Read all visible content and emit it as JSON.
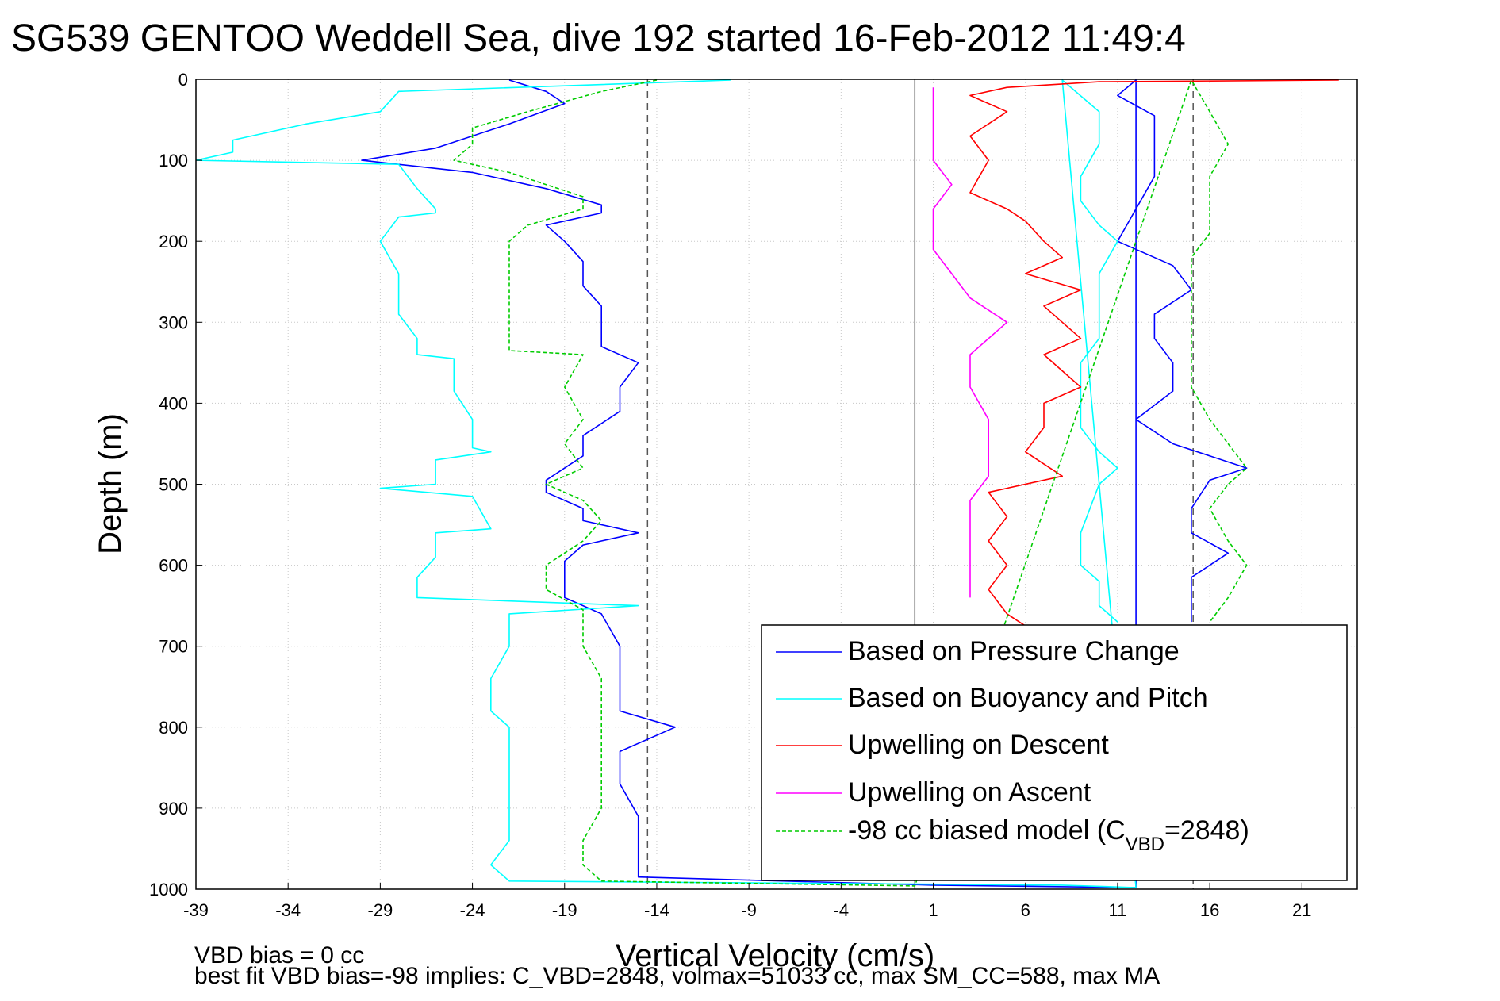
{
  "chart_data": {
    "type": "line",
    "title": "SG539 GENTOO Weddell Sea, dive 192 started 16-Feb-2012 11:49:4",
    "xlabel": "Vertical Velocity (cm/s)",
    "ylabel": "Depth (m)",
    "xlim": [
      -39,
      24
    ],
    "ylim": [
      1000,
      0
    ],
    "y_reversed": true,
    "grid": true,
    "xticks": [
      "-39",
      "-34",
      "-29",
      "-24",
      "-19",
      "-14",
      "-9",
      "-4",
      "1",
      "6",
      "11",
      "16",
      "21"
    ],
    "yticks": [
      "0",
      "100",
      "200",
      "300",
      "400",
      "500",
      "600",
      "700",
      "800",
      "900",
      "1000"
    ],
    "reference_lines": {
      "dashed_x": [
        -14.5,
        15.1
      ],
      "solid_x": [
        0
      ]
    },
    "legend_placement": "lower-right",
    "series": [
      {
        "name": "Based on Pressure Change",
        "color": "#0000ff",
        "style": "solid",
        "points": [
          [
            -22,
            1
          ],
          [
            -20,
            15
          ],
          [
            -19,
            30
          ],
          [
            -22,
            55
          ],
          [
            -26,
            85
          ],
          [
            -30,
            100
          ],
          [
            -24,
            115
          ],
          [
            -20,
            135
          ],
          [
            -17,
            155
          ],
          [
            -17,
            165
          ],
          [
            -20,
            180
          ],
          [
            -19,
            200
          ],
          [
            -18,
            225
          ],
          [
            -18,
            255
          ],
          [
            -17,
            280
          ],
          [
            -17,
            305
          ],
          [
            -17,
            330
          ],
          [
            -15,
            350
          ],
          [
            -16,
            380
          ],
          [
            -16,
            410
          ],
          [
            -18,
            440
          ],
          [
            -18,
            465
          ],
          [
            -20,
            495
          ],
          [
            -20,
            510
          ],
          [
            -18,
            530
          ],
          [
            -18,
            545
          ],
          [
            -15,
            560
          ],
          [
            -18,
            575
          ],
          [
            -19,
            595
          ],
          [
            -19,
            615
          ],
          [
            -19,
            640
          ],
          [
            -17,
            660
          ],
          [
            -16,
            700
          ],
          [
            -16,
            740
          ],
          [
            -16,
            780
          ],
          [
            -13,
            800
          ],
          [
            -16,
            830
          ],
          [
            -16,
            870
          ],
          [
            -15,
            910
          ],
          [
            -15,
            950
          ],
          [
            -15,
            985
          ],
          [
            1,
            995
          ],
          [
            12,
            998
          ],
          [
            12,
            1
          ],
          [
            11,
            20
          ],
          [
            13,
            45
          ],
          [
            13,
            80
          ],
          [
            13,
            120
          ],
          [
            12,
            160
          ],
          [
            11,
            200
          ],
          [
            14,
            230
          ],
          [
            15,
            260
          ],
          [
            13,
            290
          ],
          [
            13,
            320
          ],
          [
            14,
            350
          ],
          [
            14,
            385
          ],
          [
            12,
            420
          ],
          [
            14,
            450
          ],
          [
            18,
            480
          ],
          [
            16,
            495
          ],
          [
            15,
            530
          ],
          [
            15,
            560
          ],
          [
            17,
            585
          ],
          [
            15,
            615
          ],
          [
            15,
            645
          ],
          [
            15,
            670
          ]
        ]
      },
      {
        "name": "Based on Buoyancy and Pitch",
        "color": "#00ffff",
        "style": "solid",
        "points": [
          [
            -10,
            1
          ],
          [
            -28,
            15
          ],
          [
            -29,
            40
          ],
          [
            -33,
            55
          ],
          [
            -37,
            75
          ],
          [
            -37,
            90
          ],
          [
            -39,
            100
          ],
          [
            -28,
            105
          ],
          [
            -27,
            135
          ],
          [
            -26,
            160
          ],
          [
            -26,
            165
          ],
          [
            -28,
            170
          ],
          [
            -29,
            200
          ],
          [
            -28,
            240
          ],
          [
            -28,
            290
          ],
          [
            -27,
            320
          ],
          [
            -27,
            340
          ],
          [
            -25,
            345
          ],
          [
            -25,
            385
          ],
          [
            -24,
            420
          ],
          [
            -24,
            455
          ],
          [
            -23,
            460
          ],
          [
            -26,
            470
          ],
          [
            -26,
            500
          ],
          [
            -29,
            505
          ],
          [
            -24,
            515
          ],
          [
            -23,
            555
          ],
          [
            -26,
            560
          ],
          [
            -26,
            590
          ],
          [
            -27,
            615
          ],
          [
            -27,
            640
          ],
          [
            -15,
            650
          ],
          [
            -22,
            660
          ],
          [
            -22,
            700
          ],
          [
            -23,
            740
          ],
          [
            -23,
            780
          ],
          [
            -22,
            800
          ],
          [
            -22,
            840
          ],
          [
            -22,
            870
          ],
          [
            -22,
            900
          ],
          [
            -22,
            940
          ],
          [
            -23,
            970
          ],
          [
            -22,
            990
          ],
          [
            8,
            995
          ],
          [
            12,
            998
          ],
          [
            8,
            1
          ],
          [
            10,
            40
          ],
          [
            10,
            80
          ],
          [
            9,
            120
          ],
          [
            9,
            150
          ],
          [
            10,
            180
          ],
          [
            11,
            200
          ],
          [
            10,
            240
          ],
          [
            10,
            280
          ],
          [
            10,
            320
          ],
          [
            9,
            350
          ],
          [
            9,
            400
          ],
          [
            9,
            430
          ],
          [
            10,
            460
          ],
          [
            11,
            480
          ],
          [
            10,
            500
          ],
          [
            9,
            560
          ],
          [
            9,
            600
          ],
          [
            10,
            620
          ],
          [
            10,
            650
          ],
          [
            11,
            670
          ]
        ]
      },
      {
        "name": "Upwelling on Descent",
        "color": "#ff0000",
        "style": "solid",
        "points": [
          [
            23,
            1
          ],
          [
            10,
            3
          ],
          [
            5,
            10
          ],
          [
            3,
            20
          ],
          [
            5,
            40
          ],
          [
            3,
            70
          ],
          [
            4,
            100
          ],
          [
            3,
            140
          ],
          [
            5,
            160
          ],
          [
            6,
            175
          ],
          [
            7,
            200
          ],
          [
            8,
            220
          ],
          [
            6,
            240
          ],
          [
            9,
            260
          ],
          [
            7,
            280
          ],
          [
            8,
            300
          ],
          [
            9,
            320
          ],
          [
            7,
            340
          ],
          [
            8,
            360
          ],
          [
            9,
            380
          ],
          [
            7,
            400
          ],
          [
            7,
            430
          ],
          [
            6,
            460
          ],
          [
            8,
            490
          ],
          [
            4,
            510
          ],
          [
            5,
            540
          ],
          [
            4,
            570
          ],
          [
            5,
            600
          ],
          [
            4,
            630
          ],
          [
            5,
            660
          ],
          [
            6,
            675
          ]
        ]
      },
      {
        "name": "Upwelling on Ascent",
        "color": "#ff00ff",
        "style": "solid",
        "points": [
          [
            1,
            10
          ],
          [
            1,
            40
          ],
          [
            1,
            70
          ],
          [
            1,
            100
          ],
          [
            2,
            130
          ],
          [
            1,
            160
          ],
          [
            1,
            190
          ],
          [
            1,
            210
          ],
          [
            2,
            240
          ],
          [
            3,
            270
          ],
          [
            5,
            300
          ],
          [
            3,
            340
          ],
          [
            3,
            380
          ],
          [
            4,
            420
          ],
          [
            4,
            460
          ],
          [
            4,
            490
          ],
          [
            3,
            520
          ],
          [
            3,
            560
          ],
          [
            3,
            600
          ],
          [
            3,
            640
          ]
        ]
      },
      {
        "name": "-98 cc biased model (C<sub>VBD</sub>=2848)",
        "color": "#00cc00",
        "style": "dashed",
        "points": [
          [
            -14,
            1
          ],
          [
            -17,
            15
          ],
          [
            -21,
            40
          ],
          [
            -24,
            60
          ],
          [
            -24,
            80
          ],
          [
            -25,
            100
          ],
          [
            -22,
            115
          ],
          [
            -20,
            130
          ],
          [
            -18,
            145
          ],
          [
            -18,
            160
          ],
          [
            -21,
            180
          ],
          [
            -22,
            200
          ],
          [
            -22,
            240
          ],
          [
            -22,
            280
          ],
          [
            -22,
            320
          ],
          [
            -22,
            335
          ],
          [
            -18,
            340
          ],
          [
            -19,
            380
          ],
          [
            -18,
            420
          ],
          [
            -19,
            450
          ],
          [
            -18,
            480
          ],
          [
            -20,
            500
          ],
          [
            -18,
            520
          ],
          [
            -17,
            545
          ],
          [
            -18,
            570
          ],
          [
            -20,
            600
          ],
          [
            -20,
            630
          ],
          [
            -18,
            655
          ],
          [
            -18,
            700
          ],
          [
            -17,
            740
          ],
          [
            -17,
            780
          ],
          [
            -17,
            820
          ],
          [
            -17,
            860
          ],
          [
            -17,
            900
          ],
          [
            -18,
            940
          ],
          [
            -18,
            970
          ],
          [
            -17,
            990
          ],
          [
            0,
            996
          ],
          [
            15,
            1
          ],
          [
            16,
            40
          ],
          [
            17,
            80
          ],
          [
            16,
            120
          ],
          [
            16,
            160
          ],
          [
            16,
            190
          ],
          [
            15,
            220
          ],
          [
            15,
            260
          ],
          [
            15,
            300
          ],
          [
            15,
            350
          ],
          [
            15,
            380
          ],
          [
            16,
            420
          ],
          [
            17,
            450
          ],
          [
            18,
            480
          ],
          [
            17,
            500
          ],
          [
            16,
            530
          ],
          [
            17,
            570
          ],
          [
            18,
            600
          ],
          [
            17,
            640
          ],
          [
            16,
            670
          ]
        ]
      }
    ]
  },
  "footer": {
    "line1": "VBD bias = 0 cc",
    "line2": "best fit VBD bias=-98 implies: C_VBD=2848, volmax=51033 cc, max SM_CC=588, max MA"
  }
}
